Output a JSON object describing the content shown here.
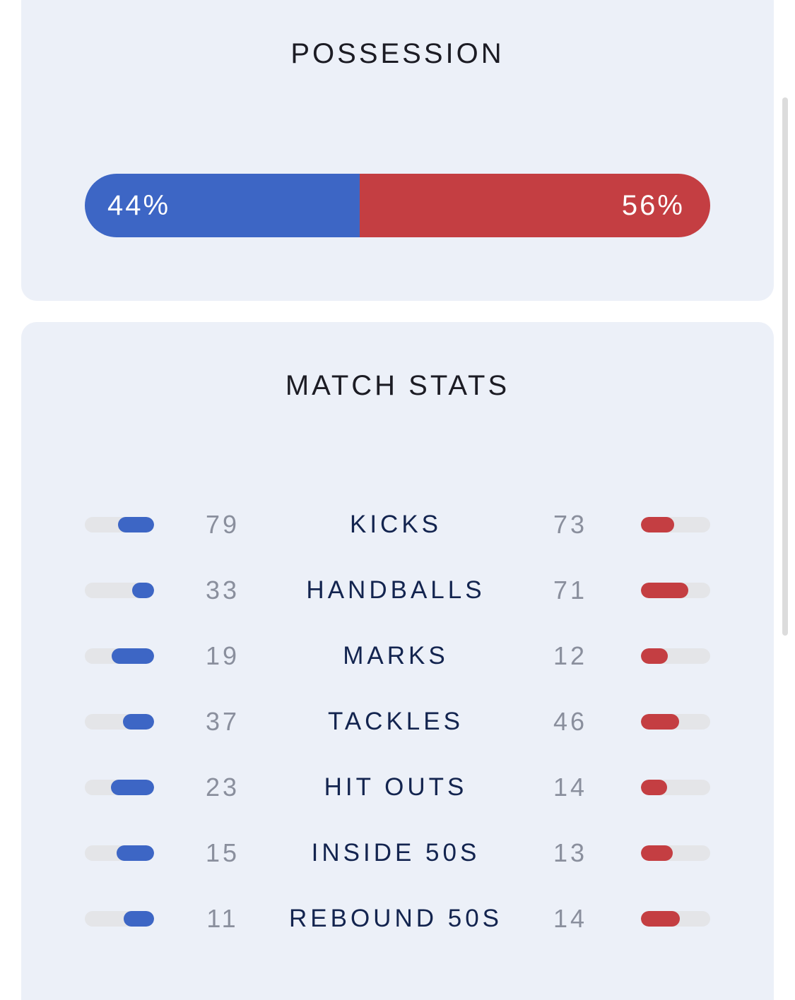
{
  "colors": {
    "home": "#3d66c5",
    "away": "#c43e42",
    "card_bg": "#ecf0f8",
    "track": "#e4e5e8"
  },
  "possession": {
    "title": "POSSESSION",
    "home_pct": 44,
    "away_pct": 56,
    "home_label": "44%",
    "away_label": "56%"
  },
  "match_stats": {
    "title": "MATCH STATS",
    "rows": [
      {
        "label": "KICKS",
        "home": "79",
        "away": "73",
        "home_fill": 0.52,
        "away_fill": 0.48
      },
      {
        "label": "HANDBALLS",
        "home": "33",
        "away": "71",
        "home_fill": 0.32,
        "away_fill": 0.68
      },
      {
        "label": "MARKS",
        "home": "19",
        "away": "12",
        "home_fill": 0.61,
        "away_fill": 0.39
      },
      {
        "label": "TACKLES",
        "home": "37",
        "away": "46",
        "home_fill": 0.45,
        "away_fill": 0.55
      },
      {
        "label": "HIT OUTS",
        "home": "23",
        "away": "14",
        "home_fill": 0.62,
        "away_fill": 0.38
      },
      {
        "label": "INSIDE 50S",
        "home": "15",
        "away": "13",
        "home_fill": 0.54,
        "away_fill": 0.46
      },
      {
        "label": "REBOUND 50S",
        "home": "11",
        "away": "14",
        "home_fill": 0.44,
        "away_fill": 0.56
      }
    ]
  }
}
